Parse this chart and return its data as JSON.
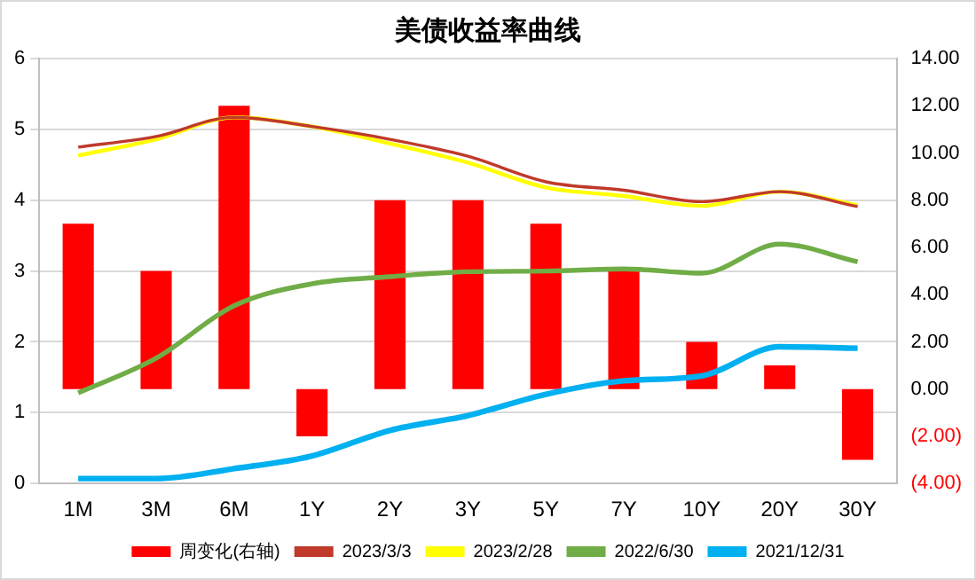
{
  "chart_data": {
    "type": "line",
    "title": "美债收益率曲线",
    "categories": [
      "1M",
      "3M",
      "6M",
      "1Y",
      "2Y",
      "3Y",
      "5Y",
      "7Y",
      "10Y",
      "20Y",
      "30Y"
    ],
    "series": [
      {
        "name": "周变化(右轴)",
        "type": "bar",
        "axis": "y2",
        "color": "#ff0000",
        "values": [
          7,
          5,
          12,
          -2,
          8,
          8,
          7,
          5,
          2,
          1,
          -3
        ]
      },
      {
        "name": "2023/3/3",
        "color": "#c0392b",
        "values": [
          4.75,
          4.9,
          5.17,
          5.04,
          4.86,
          4.62,
          4.26,
          4.14,
          3.98,
          4.12,
          3.91
        ]
      },
      {
        "name": "2023/2/28",
        "color": "#ffff00",
        "values": [
          4.63,
          4.86,
          5.17,
          5.04,
          4.8,
          4.53,
          4.18,
          4.06,
          3.92,
          4.12,
          3.93
        ]
      },
      {
        "name": "2022/6/30",
        "color": "#70ad47",
        "values": [
          1.28,
          1.77,
          2.51,
          2.82,
          2.92,
          2.99,
          3.0,
          3.03,
          2.97,
          3.38,
          3.13
        ]
      },
      {
        "name": "2021/12/31",
        "color": "#00b0f0",
        "values": [
          0.07,
          0.07,
          0.21,
          0.39,
          0.75,
          0.96,
          1.26,
          1.45,
          1.52,
          1.93,
          1.91
        ]
      }
    ],
    "ylim": [
      0,
      6
    ],
    "yticks": [
      0,
      1,
      2,
      3,
      4,
      5,
      6
    ],
    "y2lim": [
      -4,
      14
    ],
    "y2ticks": [
      {
        "value": -4,
        "label": "(4.00)"
      },
      {
        "value": -2,
        "label": "(2.00)"
      },
      {
        "value": 0,
        "label": "0.00"
      },
      {
        "value": 2,
        "label": "2.00"
      },
      {
        "value": 4,
        "label": "4.00"
      },
      {
        "value": 6,
        "label": "6.00"
      },
      {
        "value": 8,
        "label": "8.00"
      },
      {
        "value": 10,
        "label": "10.00"
      },
      {
        "value": 12,
        "label": "12.00"
      },
      {
        "value": 14,
        "label": "14.00"
      }
    ],
    "grid": "y",
    "legend": "bottom",
    "marker": "none",
    "line_style": "solid"
  }
}
